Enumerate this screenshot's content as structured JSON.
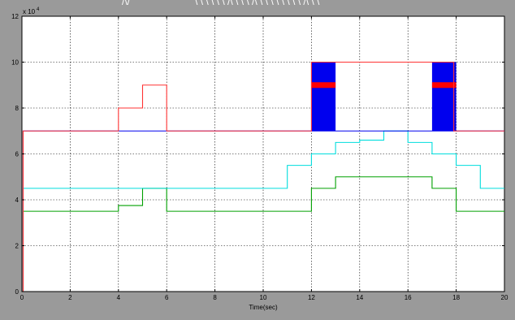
{
  "window": {
    "title_fragments": [
      "/\\/",
      "\\ \\ \\ \\ \\ \\ /\\ \\ \\ \\ /\\ \\ \\ \\ \\ \\ \\ \\ \\ /\\ \\ \\"
    ]
  },
  "chart_data": {
    "type": "line",
    "xlabel": "Time(sec)",
    "ylabel": "",
    "y_multiplier_label": "x 10",
    "y_multiplier_exponent": "4",
    "xlim": [
      0,
      20
    ],
    "ylim": [
      0,
      12
    ],
    "xticks": [
      0,
      2,
      4,
      6,
      8,
      10,
      12,
      14,
      16,
      18,
      20
    ],
    "yticks": [
      0,
      2,
      4,
      6,
      8,
      10,
      12
    ],
    "grid": true,
    "background": "#ffffff",
    "series": [
      {
        "color": "#00a000",
        "style": "step",
        "x": [
          0,
          0.05,
          0.05,
          4,
          4,
          5,
          5,
          6,
          6,
          12,
          12,
          13,
          13,
          17,
          17,
          18,
          18,
          20
        ],
        "y": [
          0,
          0,
          3.5,
          3.5,
          3.75,
          3.75,
          4.5,
          4.5,
          3.5,
          3.5,
          4.5,
          4.5,
          5,
          5,
          4.5,
          4.5,
          3.5,
          3.5
        ]
      },
      {
        "color": "#00dddd",
        "style": "step",
        "x": [
          0,
          0.05,
          0.05,
          11,
          11,
          12,
          12,
          13,
          13,
          14,
          14,
          15,
          15,
          16,
          16,
          17,
          17,
          18,
          18,
          19,
          19,
          20
        ],
        "y": [
          0,
          0,
          4.5,
          4.5,
          5.5,
          5.5,
          6,
          6,
          6.5,
          6.5,
          6.6,
          6.6,
          7,
          7,
          6.5,
          6.5,
          6,
          6,
          5.5,
          5.5,
          4.5,
          4.5
        ]
      },
      {
        "color": "#0000ee",
        "style": "step",
        "x": [
          0,
          0.05,
          0.05,
          20
        ],
        "y": [
          0,
          0,
          7,
          7
        ]
      },
      {
        "color": "#ff3333",
        "style": "step",
        "x": [
          0,
          0.05,
          0.05,
          4,
          4,
          5,
          5,
          6,
          6,
          12,
          12,
          17.9,
          17.9,
          20
        ],
        "y": [
          0,
          0,
          7,
          7,
          8,
          8,
          9,
          9,
          7,
          7,
          10,
          10,
          7,
          7
        ]
      }
    ],
    "oscillation_bands": [
      {
        "x_start": 12,
        "x_end": 13,
        "y_low": 7,
        "y_high": 10,
        "color": "#0000ee",
        "center": 9,
        "center_color": "#ff0000"
      },
      {
        "x_start": 17,
        "x_end": 18,
        "y_low": 7,
        "y_high": 10,
        "color": "#0000ee",
        "center": 9,
        "center_color": "#ff0000"
      }
    ],
    "colors": {
      "axes_background": "#ffffff",
      "figure_background": "#9a9a9a",
      "grid": "#000000"
    }
  }
}
